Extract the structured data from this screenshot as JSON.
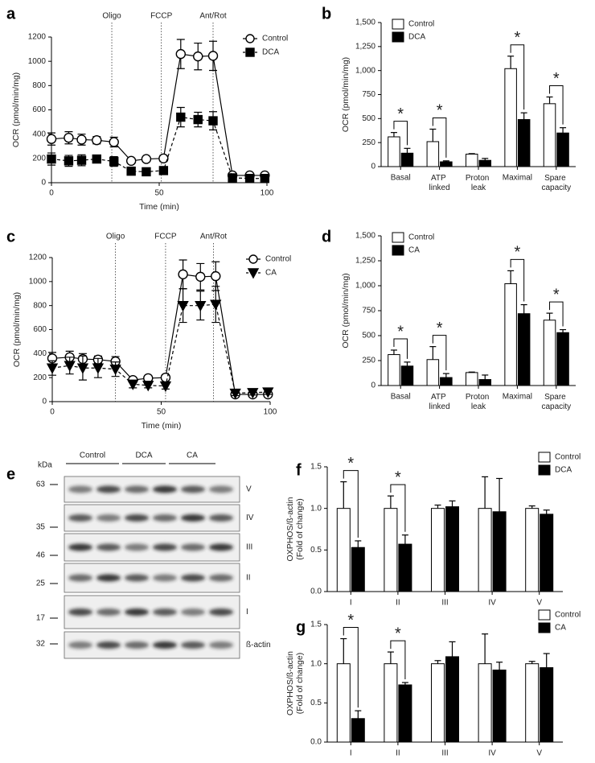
{
  "chart_data": [
    {
      "type": "line",
      "label": "a",
      "xlabel": "Time (min)",
      "ylabel": "OCR (pmol/min/mg)",
      "xlim": [
        0,
        100
      ],
      "xticks": [
        0,
        50,
        100
      ],
      "ylim": [
        0,
        1200
      ],
      "yticks": [
        0,
        200,
        400,
        600,
        800,
        1000,
        1200
      ],
      "legend": "upper right",
      "annotations": [
        {
          "x": 28,
          "text": "Oligo"
        },
        {
          "x": 51,
          "text": "FCCP"
        },
        {
          "x": 75,
          "text": "Ant/Rot"
        }
      ],
      "x": [
        0,
        8,
        14,
        21,
        29,
        37,
        44,
        52,
        60,
        68,
        75,
        84,
        92,
        99
      ],
      "series": [
        {
          "name": "Control",
          "color": "#000000",
          "marker": "circle",
          "fill": "#ffffff",
          "linestyle": "solid",
          "values": [
            360,
            370,
            355,
            350,
            335,
            180,
            195,
            200,
            1060,
            1040,
            1045,
            60,
            60,
            60
          ],
          "errors": [
            50,
            50,
            45,
            30,
            40,
            20,
            15,
            25,
            120,
            110,
            120,
            20,
            20,
            20
          ]
        },
        {
          "name": "DCA",
          "color": "#000000",
          "marker": "square",
          "fill": "#000000",
          "linestyle": "dashed",
          "values": [
            195,
            180,
            185,
            195,
            175,
            95,
            90,
            100,
            540,
            520,
            510,
            40,
            35,
            35
          ],
          "errors": [
            50,
            45,
            45,
            25,
            40,
            15,
            10,
            15,
            80,
            60,
            75,
            15,
            15,
            15
          ]
        }
      ]
    },
    {
      "type": "bar",
      "label": "b",
      "ylabel": "OCR (pmol/min/mg)",
      "categories": [
        "Basal",
        "ATP linked",
        "Proton leak",
        "Maximal",
        "Spare capacity"
      ],
      "ylim": [
        0,
        1500
      ],
      "yticks": [
        0,
        250,
        500,
        750,
        {
          "value": 1000,
          "label": "1,000"
        },
        {
          "value": 1250,
          "label": "1,250"
        },
        {
          "value": 1500,
          "label": "1,500"
        }
      ],
      "legend": "upper left",
      "significance": [
        "*",
        "*",
        null,
        "*",
        "*"
      ],
      "series": [
        {
          "name": "Control",
          "color": "#ffffff",
          "values": [
            310,
            260,
            130,
            1020,
            655
          ],
          "errors": [
            45,
            130,
            5,
            130,
            70
          ]
        },
        {
          "name": "DCA",
          "color": "#000000",
          "values": [
            140,
            50,
            65,
            490,
            350
          ],
          "errors": [
            50,
            10,
            20,
            70,
            55
          ]
        }
      ]
    },
    {
      "type": "line",
      "label": "c",
      "xlabel": "Time (min)",
      "ylabel": "OCR (pmol/min/mg)",
      "xlim": [
        0,
        100
      ],
      "xticks": [
        0,
        50,
        100
      ],
      "ylim": [
        0,
        1200
      ],
      "yticks": [
        0,
        200,
        400,
        600,
        800,
        1000,
        1200
      ],
      "legend": "upper right",
      "annotations": [
        {
          "x": 29,
          "text": "Oligo"
        },
        {
          "x": 52,
          "text": "FCCP"
        },
        {
          "x": 74,
          "text": "Ant/Rot"
        }
      ],
      "x": [
        0,
        8,
        14,
        21,
        29,
        37,
        44,
        52,
        60,
        68,
        75,
        84,
        92,
        99
      ],
      "series": [
        {
          "name": "Control",
          "color": "#000000",
          "marker": "circle",
          "fill": "#ffffff",
          "linestyle": "solid",
          "values": [
            360,
            370,
            355,
            350,
            335,
            180,
            195,
            200,
            1060,
            1040,
            1045,
            60,
            60,
            60
          ],
          "errors": [
            50,
            50,
            45,
            30,
            40,
            20,
            15,
            25,
            120,
            110,
            120,
            20,
            20,
            20
          ]
        },
        {
          "name": "CA",
          "color": "#000000",
          "marker": "triangle-down",
          "fill": "#000000",
          "linestyle": "dashed",
          "values": [
            280,
            300,
            280,
            280,
            270,
            145,
            135,
            130,
            800,
            800,
            810,
            70,
            75,
            80
          ],
          "errors": [
            60,
            70,
            100,
            80,
            60,
            30,
            20,
            25,
            140,
            120,
            150,
            20,
            20,
            20
          ]
        }
      ]
    },
    {
      "type": "bar",
      "label": "d",
      "ylabel": "OCR (pmol/min/mg)",
      "categories": [
        "Basal",
        "ATP linked",
        "Proton leak",
        "Maximal",
        "Spare capacity"
      ],
      "ylim": [
        0,
        1500
      ],
      "yticks": [
        0,
        250,
        500,
        750,
        {
          "value": 1000,
          "label": "1,000"
        },
        {
          "value": 1250,
          "label": "1,250"
        },
        {
          "value": 1500,
          "label": "1,500"
        }
      ],
      "legend": "upper left",
      "significance": [
        "*",
        "*",
        null,
        "*",
        "*"
      ],
      "series": [
        {
          "name": "Control",
          "color": "#ffffff",
          "values": [
            310,
            260,
            130,
            1020,
            655
          ],
          "errors": [
            45,
            130,
            5,
            130,
            70
          ]
        },
        {
          "name": "CA",
          "color": "#000000",
          "values": [
            195,
            80,
            60,
            720,
            530
          ],
          "errors": [
            40,
            40,
            45,
            90,
            30
          ]
        }
      ]
    },
    {
      "type": "bar",
      "label": "f",
      "ylabel": [
        "OXPHOS/ß-actin",
        "(Fold of change)"
      ],
      "categories": [
        "I",
        "II",
        "III",
        "IV",
        "V"
      ],
      "ylim": [
        0,
        1.5
      ],
      "yticks": [
        {
          "value": 0,
          "label": "0.0"
        },
        0.5,
        {
          "value": 1,
          "label": "1.0"
        },
        1.5
      ],
      "legend": "upper right",
      "significance": [
        "*",
        "*",
        null,
        null,
        null
      ],
      "series": [
        {
          "name": "Control",
          "color": "#ffffff",
          "values": [
            1.0,
            1.0,
            1.0,
            1.0,
            1.0
          ],
          "errors": [
            0.32,
            0.15,
            0.04,
            0.38,
            0.03
          ]
        },
        {
          "name": "DCA",
          "color": "#000000",
          "values": [
            0.53,
            0.57,
            1.02,
            0.96,
            0.93
          ],
          "errors": [
            0.08,
            0.11,
            0.07,
            0.4,
            0.05
          ]
        }
      ]
    },
    {
      "type": "bar",
      "label": "g",
      "ylabel": [
        "OXPHOS/ß-actin",
        "(Fold of change)"
      ],
      "categories": [
        "I",
        "II",
        "III",
        "IV",
        "V"
      ],
      "ylim": [
        0,
        1.5
      ],
      "yticks": [
        {
          "value": 0,
          "label": "0.0"
        },
        0.5,
        {
          "value": 1,
          "label": "1.0"
        },
        1.5
      ],
      "legend": "upper right",
      "significance": [
        "*",
        "*",
        null,
        null,
        null
      ],
      "series": [
        {
          "name": "Control",
          "color": "#ffffff",
          "values": [
            1.0,
            1.0,
            1.0,
            1.0,
            1.0
          ],
          "errors": [
            0.32,
            0.15,
            0.04,
            0.38,
            0.03
          ]
        },
        {
          "name": "CA",
          "color": "#000000",
          "values": [
            0.3,
            0.73,
            1.09,
            0.92,
            0.95
          ],
          "errors": [
            0.1,
            0.03,
            0.19,
            0.1,
            0.18
          ]
        }
      ]
    }
  ],
  "blot": {
    "label": "e",
    "unit": "kDa",
    "groups": [
      "Control",
      "DCA",
      "CA"
    ],
    "rows": [
      {
        "marker": 63,
        "band": "V"
      },
      {
        "marker": 35,
        "band": "IV"
      },
      {
        "marker": 46,
        "band": "III"
      },
      {
        "marker": 25,
        "band": "II"
      },
      {
        "marker": 17,
        "band": "I"
      },
      {
        "marker": 32,
        "band": "ß-actin"
      }
    ]
  }
}
